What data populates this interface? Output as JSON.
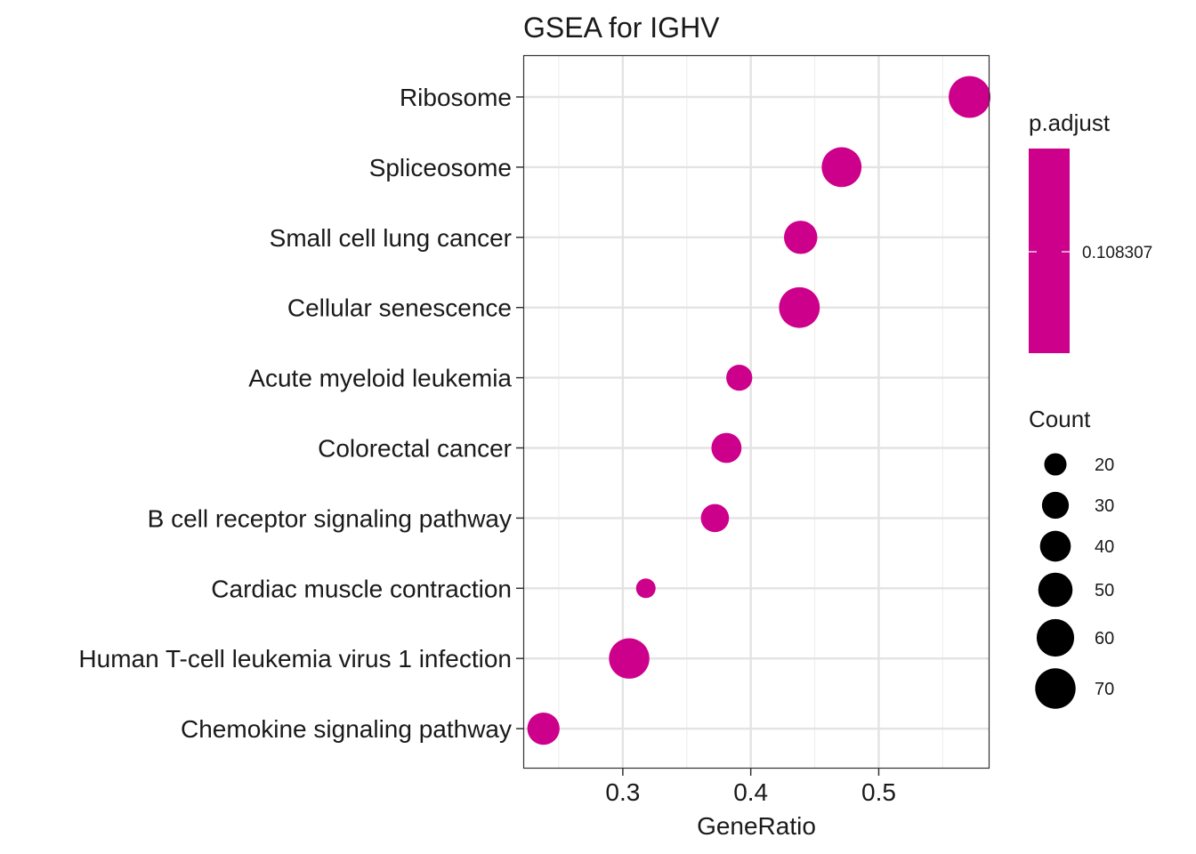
{
  "chart_data": {
    "type": "scatter",
    "title": "GSEA for IGHV",
    "xlabel": "GeneRatio",
    "ylabel": "",
    "xlim": [
      0.2222,
      0.5866
    ],
    "x_ticks": [
      "0.3",
      "0.4",
      "0.5"
    ],
    "x_tick_values": [
      0.3,
      0.4,
      0.5
    ],
    "x_minor_values": [
      0.25,
      0.35,
      0.45,
      0.55
    ],
    "grid": true,
    "categories": [
      "Ribosome",
      "Spliceosome",
      "Small cell lung cancer",
      "Cellular senescence",
      "Acute myeloid leukemia",
      "Colorectal cancer",
      "B cell receptor signaling pathway",
      "Cardiac muscle contraction",
      "Human T-cell leukemia virus 1 infection",
      "Chemokine signaling pathway"
    ],
    "x": [
      0.571,
      0.471,
      0.439,
      0.438,
      0.391,
      0.381,
      0.372,
      0.318,
      0.305,
      0.238
    ],
    "count": [
      75,
      68,
      47,
      71,
      28,
      38,
      33,
      15,
      70,
      44
    ],
    "point_color": "#cc008b",
    "color_legend": {
      "title": "p.adjust",
      "label": "0.108307",
      "color": "#cc008b"
    },
    "size_legend": {
      "title": "Count",
      "values": [
        20,
        30,
        40,
        50,
        60,
        70
      ],
      "labels": [
        "20",
        "30",
        "40",
        "50",
        "60",
        "70"
      ]
    },
    "legend_placement": "right"
  }
}
